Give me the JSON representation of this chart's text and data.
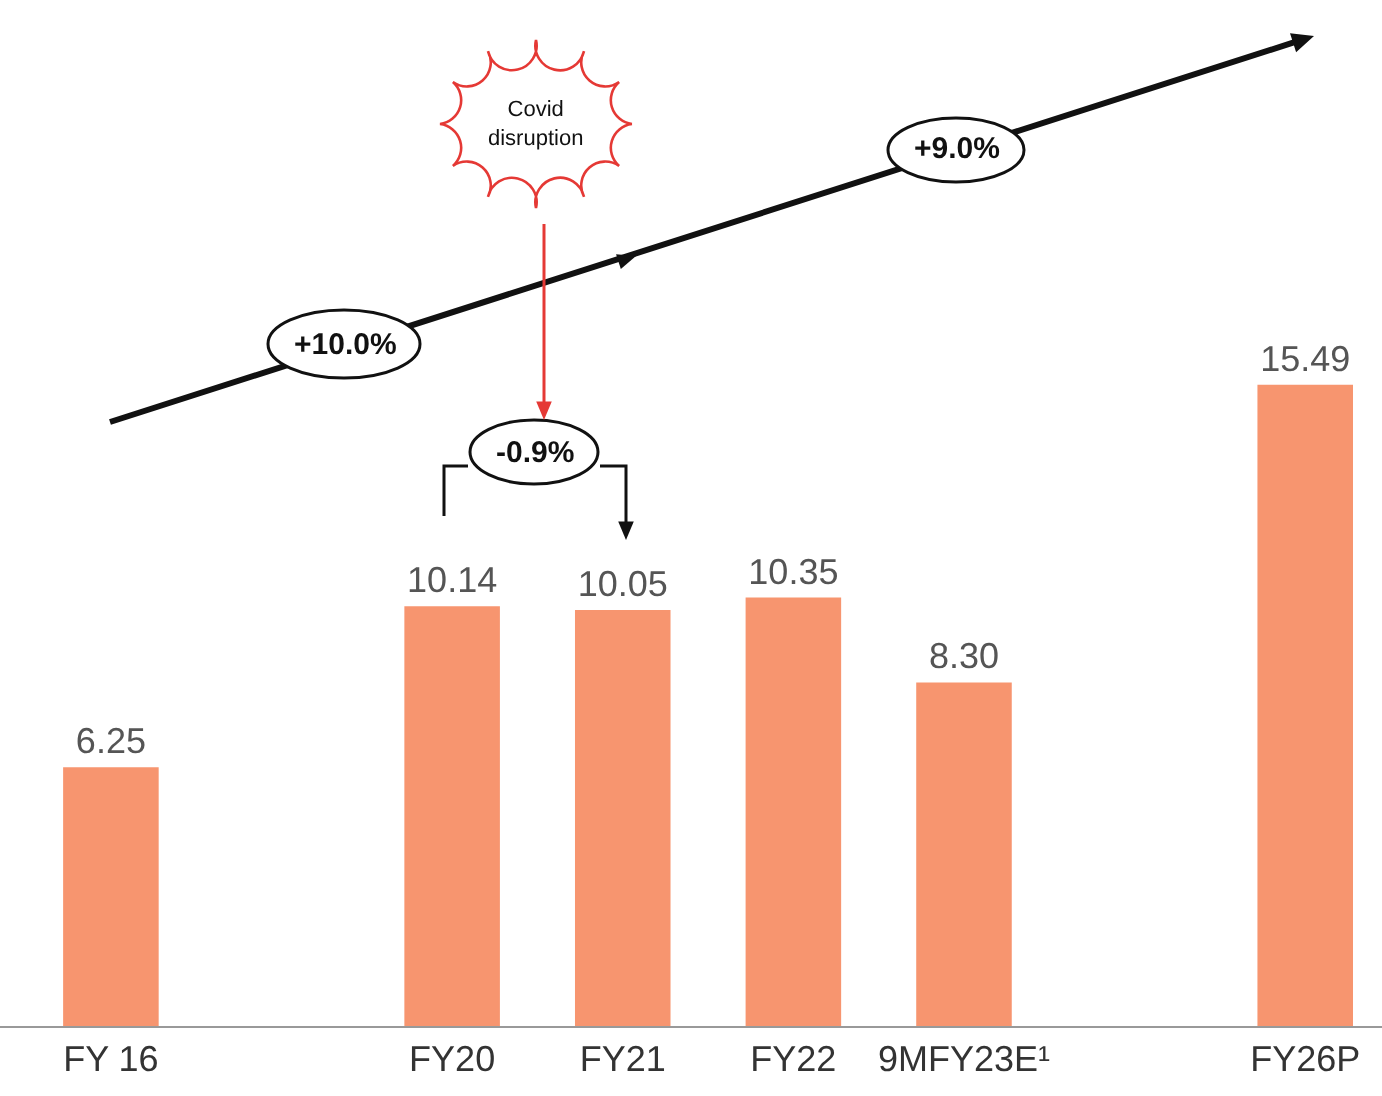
{
  "chart_data": {
    "type": "bar",
    "categories": [
      "FY 16",
      null,
      "FY20",
      "FY21",
      "FY22",
      "9MFY23E¹",
      null,
      "FY26P"
    ],
    "values": [
      6.25,
      null,
      10.14,
      10.05,
      10.35,
      8.3,
      null,
      15.49
    ],
    "color": "#f7956f",
    "value_labels": [
      "6.25",
      null,
      "10.14",
      "10.05",
      "10.35",
      "8.30",
      null,
      "15.49"
    ],
    "annotations": [
      "+10.0%",
      "+9.0%",
      "Covid disruption",
      "-0.9%"
    ]
  }
}
